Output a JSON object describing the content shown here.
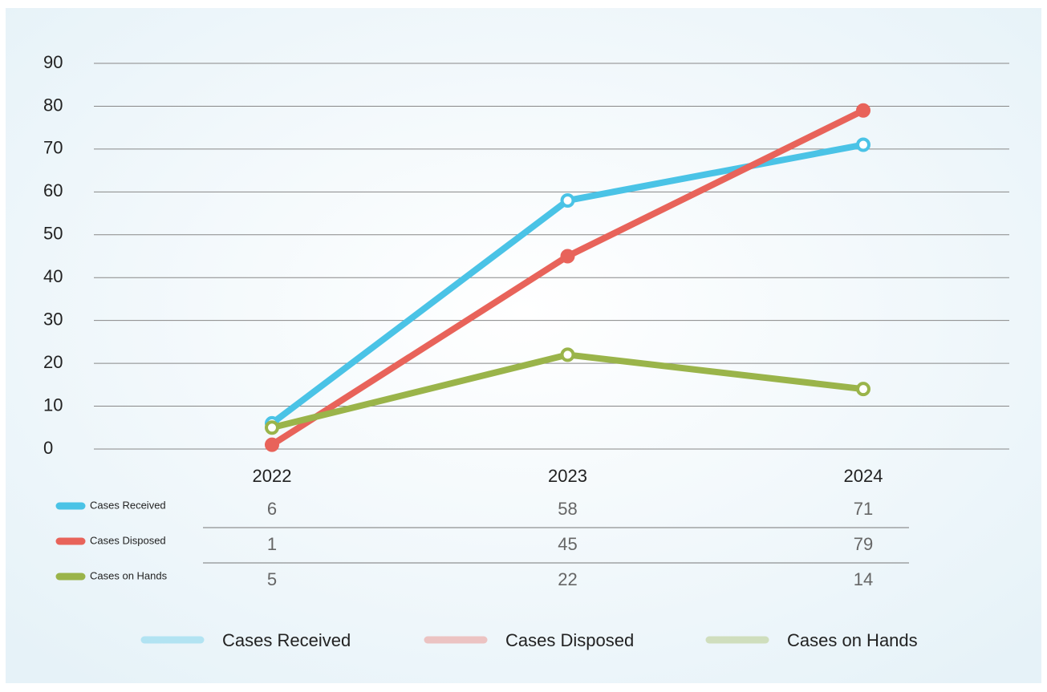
{
  "chart_data": {
    "type": "line",
    "categories": [
      "2022",
      "2023",
      "2024"
    ],
    "series": [
      {
        "name": "Cases Received",
        "color": "#4ac3e6",
        "values": [
          6,
          58,
          71
        ]
      },
      {
        "name": "Cases Disposed",
        "color": "#e8635a",
        "values": [
          1,
          45,
          79
        ]
      },
      {
        "name": "Cases on Hands",
        "color": "#9ab44a",
        "values": [
          5,
          22,
          14
        ]
      }
    ],
    "ylim": [
      0,
      90
    ],
    "yticks": [
      0,
      10,
      20,
      30,
      40,
      50,
      60,
      70,
      80,
      90
    ],
    "grid": true,
    "legend": "bottom"
  }
}
